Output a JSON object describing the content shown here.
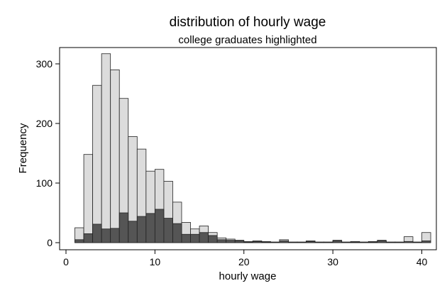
{
  "chart_data": {
    "type": "bar",
    "title": "distribution of hourly wage",
    "subtitle": "college graduates highlighted",
    "xlabel": "hourly wage",
    "ylabel": "Frequency",
    "xlim": [
      0,
      41.5
    ],
    "ylim": [
      0,
      330
    ],
    "x_ticks": [
      0,
      10,
      20,
      30,
      40
    ],
    "y_ticks": [
      0,
      100,
      200,
      300
    ],
    "grid": false,
    "legend": "none",
    "bin_start": 1,
    "bin_width": 1,
    "series": [
      {
        "color": "#dcdcdc",
        "values": [
          25,
          148,
          264,
          317,
          290,
          242,
          178,
          157,
          120,
          123,
          103,
          68,
          34,
          23,
          28,
          17,
          8,
          6,
          4,
          2,
          3,
          2,
          1,
          5,
          1,
          1,
          3,
          1,
          1,
          4,
          1,
          2,
          1,
          2,
          4,
          1,
          1,
          10,
          1,
          17
        ]
      },
      {
        "color": "#555555",
        "values": [
          5,
          15,
          31,
          23,
          24,
          50,
          36,
          44,
          49,
          56,
          41,
          32,
          14,
          14,
          17,
          12,
          5,
          4,
          3,
          1,
          2,
          1,
          1,
          3,
          1,
          1,
          2,
          1,
          1,
          3,
          1,
          1,
          1,
          1,
          3,
          1,
          1,
          2,
          1,
          3
        ]
      }
    ]
  }
}
